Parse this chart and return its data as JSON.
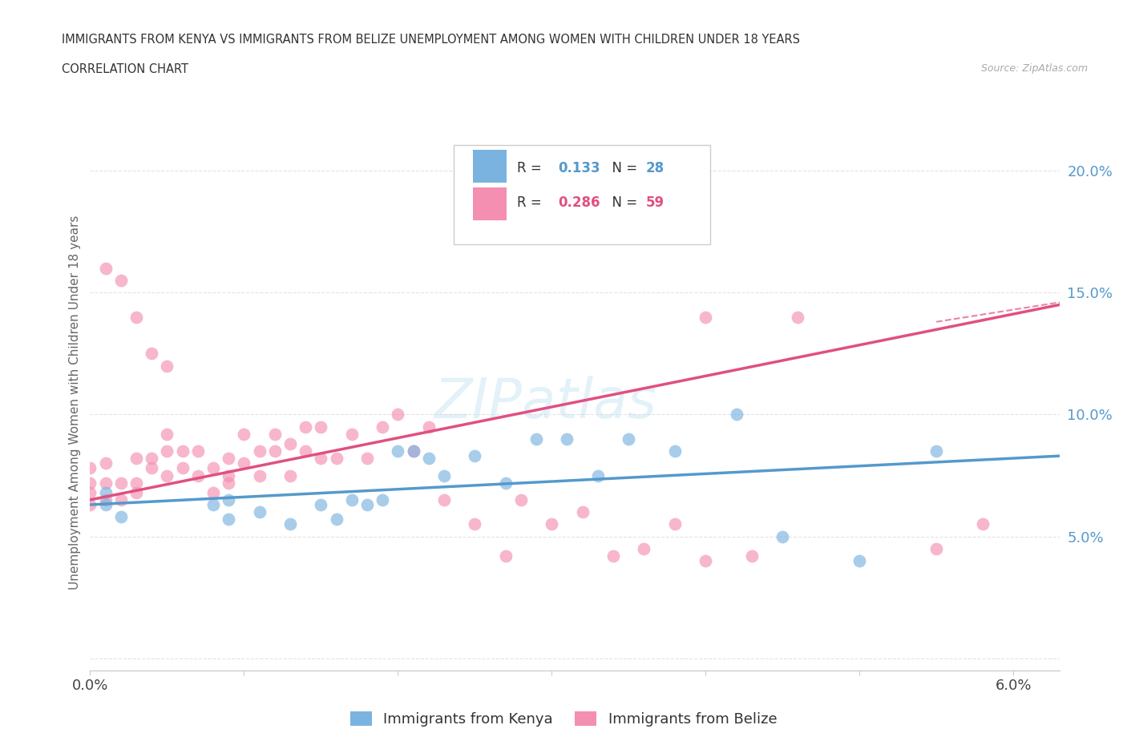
{
  "title_line1": "IMMIGRANTS FROM KENYA VS IMMIGRANTS FROM BELIZE UNEMPLOYMENT AMONG WOMEN WITH CHILDREN UNDER 18 YEARS",
  "title_line2": "CORRELATION CHART",
  "source_text": "Source: ZipAtlas.com",
  "ylabel": "Unemployment Among Women with Children Under 18 years",
  "xlim": [
    0.0,
    0.063
  ],
  "ylim": [
    -0.005,
    0.215
  ],
  "kenya_color": "#7ab3e0",
  "kenya_line_color": "#5599cc",
  "belize_color": "#f48fb1",
  "belize_line_color": "#e05080",
  "kenya_R": 0.133,
  "kenya_N": 28,
  "belize_R": 0.286,
  "belize_N": 59,
  "kenya_scatter_x": [
    0.001,
    0.001,
    0.002,
    0.008,
    0.009,
    0.009,
    0.011,
    0.013,
    0.015,
    0.016,
    0.017,
    0.018,
    0.019,
    0.02,
    0.021,
    0.022,
    0.023,
    0.025,
    0.027,
    0.029,
    0.031,
    0.033,
    0.035,
    0.038,
    0.042,
    0.045,
    0.05,
    0.055
  ],
  "kenya_scatter_y": [
    0.068,
    0.063,
    0.058,
    0.063,
    0.065,
    0.057,
    0.06,
    0.055,
    0.063,
    0.057,
    0.065,
    0.063,
    0.065,
    0.085,
    0.085,
    0.082,
    0.075,
    0.083,
    0.072,
    0.09,
    0.09,
    0.075,
    0.09,
    0.085,
    0.1,
    0.05,
    0.04,
    0.085
  ],
  "belize_scatter_x": [
    0.0,
    0.0,
    0.0,
    0.0,
    0.001,
    0.001,
    0.001,
    0.002,
    0.002,
    0.003,
    0.003,
    0.003,
    0.004,
    0.004,
    0.005,
    0.005,
    0.005,
    0.006,
    0.006,
    0.007,
    0.007,
    0.008,
    0.008,
    0.009,
    0.009,
    0.009,
    0.01,
    0.01,
    0.011,
    0.011,
    0.012,
    0.012,
    0.013,
    0.013,
    0.014,
    0.014,
    0.015,
    0.015,
    0.016,
    0.017,
    0.018,
    0.019,
    0.02,
    0.021,
    0.022,
    0.023,
    0.025,
    0.027,
    0.028,
    0.03,
    0.032,
    0.034,
    0.036,
    0.038,
    0.04,
    0.043,
    0.046,
    0.055,
    0.058
  ],
  "belize_scatter_y": [
    0.068,
    0.063,
    0.072,
    0.078,
    0.065,
    0.072,
    0.08,
    0.065,
    0.072,
    0.072,
    0.082,
    0.068,
    0.078,
    0.082,
    0.075,
    0.085,
    0.092,
    0.078,
    0.085,
    0.075,
    0.085,
    0.068,
    0.078,
    0.075,
    0.082,
    0.072,
    0.08,
    0.092,
    0.085,
    0.075,
    0.092,
    0.085,
    0.088,
    0.075,
    0.095,
    0.085,
    0.095,
    0.082,
    0.082,
    0.092,
    0.082,
    0.095,
    0.1,
    0.085,
    0.095,
    0.065,
    0.055,
    0.042,
    0.065,
    0.055,
    0.06,
    0.042,
    0.045,
    0.055,
    0.04,
    0.042,
    0.14,
    0.045,
    0.055
  ],
  "watermark_text": "ZIPatlas",
  "background_color": "#ffffff",
  "grid_color": "#dddddd",
  "belize_extra_points_x": [
    0.001,
    0.002,
    0.003,
    0.004,
    0.005,
    0.04
  ],
  "belize_extra_points_y": [
    0.16,
    0.155,
    0.14,
    0.125,
    0.12,
    0.14
  ]
}
